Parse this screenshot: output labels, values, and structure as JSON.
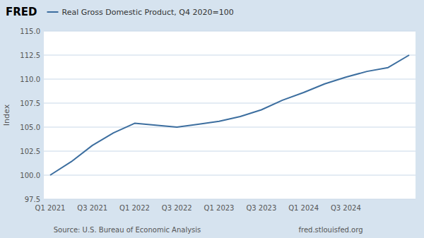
{
  "chart_data": {
    "type": "line",
    "title": "FRED",
    "ylabel": "Index",
    "annotations": [
      "Source: U.S. Bureau of Economic Analysis",
      "fred.stlouisfed.org"
    ],
    "categories": [
      "Q1 2021",
      null,
      "Q3 2021",
      null,
      "Q1 2022",
      null,
      "Q3 2022",
      null,
      "Q1 2023",
      null,
      "Q3 2023",
      null,
      "Q1 2024",
      null,
      "Q3 2024",
      null,
      null,
      null
    ],
    "series": [
      {
        "name": "Real Gross Domestic Product, Q4 2020=100",
        "color": "#3c6e9f",
        "values": [
          100.0,
          101.4,
          103.1,
          104.4,
          105.4,
          105.2,
          105.0,
          105.3,
          105.6,
          106.1,
          106.8,
          107.8,
          108.6,
          109.5,
          110.2,
          110.8,
          111.2,
          112.5
        ]
      }
    ],
    "ylim": [
      97.5,
      115.0
    ],
    "yticks": [
      97.5,
      {
        "value": 100,
        "label": "100.0"
      },
      102.5,
      {
        "value": 105,
        "label": "105.0"
      },
      107.5,
      {
        "value": 110,
        "label": "110.0"
      },
      112.5,
      {
        "value": 115,
        "label": "115.0"
      }
    ],
    "grid": true,
    "legend": "top-left"
  }
}
